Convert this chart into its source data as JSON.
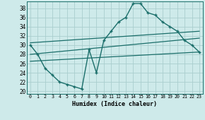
{
  "xlabel": "Humidex (Indice chaleur)",
  "bg_color": "#ceeaea",
  "grid_color": "#aacece",
  "line_color": "#1a6e6a",
  "x_ticks": [
    0,
    1,
    2,
    3,
    4,
    5,
    6,
    7,
    8,
    9,
    10,
    11,
    12,
    13,
    14,
    15,
    16,
    17,
    18,
    19,
    20,
    21,
    22,
    23
  ],
  "y_ticks": [
    20,
    22,
    24,
    26,
    28,
    30,
    32,
    34,
    36,
    38
  ],
  "ylim": [
    19.5,
    39.5
  ],
  "xlim": [
    -0.5,
    23.5
  ],
  "series1": [
    30,
    28,
    25,
    23.5,
    22,
    21.5,
    21,
    20.5,
    29,
    24,
    31,
    33,
    35,
    36,
    39,
    39,
    37,
    36.5,
    35,
    34,
    33,
    31,
    30,
    28.5
  ],
  "line2_x": [
    0,
    23
  ],
  "line2_y": [
    30.5,
    33
  ],
  "line3_x": [
    0,
    23
  ],
  "line3_y": [
    28.0,
    31.5
  ],
  "line4_x": [
    0,
    23
  ],
  "line4_y": [
    26.5,
    28.5
  ]
}
